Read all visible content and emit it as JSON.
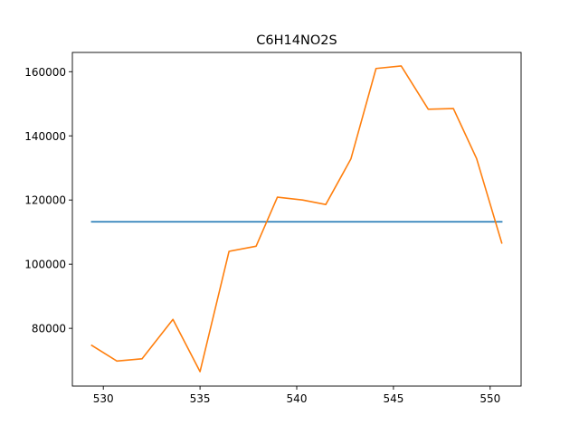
{
  "chart_data": {
    "type": "line",
    "title": "C6H14NO2S",
    "xlabel": "",
    "ylabel": "",
    "xlim": [
      528.4,
      551.6
    ],
    "ylim": [
      62000,
      166000
    ],
    "grid": false,
    "x_ticks": [
      530,
      535,
      540,
      545,
      550
    ],
    "x_tick_labels": [
      "530",
      "535",
      "540",
      "545",
      "550"
    ],
    "y_ticks": [
      80000,
      100000,
      120000,
      140000,
      160000
    ],
    "y_tick_labels": [
      "80000",
      "100000",
      "120000",
      "140000",
      "160000"
    ],
    "series": [
      {
        "color": "#1f77b4",
        "x": [
          529.4,
          550.6
        ],
        "y": [
          113200,
          113200
        ]
      },
      {
        "color": "#ff7f0e",
        "x": [
          529.4,
          530.7,
          532.0,
          533.6,
          535.0,
          536.5,
          537.9,
          539.0,
          540.3,
          541.5,
          542.8,
          544.1,
          545.4,
          546.8,
          548.1,
          549.3,
          550.6
        ],
        "y": [
          74700,
          69800,
          70500,
          82800,
          66500,
          104000,
          105600,
          120900,
          120000,
          118600,
          132800,
          161000,
          161800,
          148300,
          148500,
          132900,
          106600
        ]
      }
    ]
  }
}
